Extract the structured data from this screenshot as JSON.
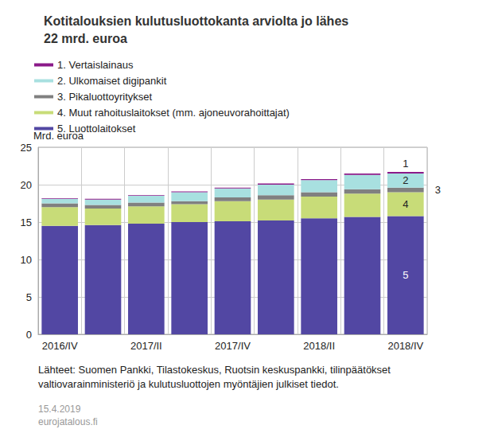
{
  "chart_data": {
    "type": "bar",
    "title": "Kotitalouksien kulutusluottokanta arviolta jo lähes\n22 mrd. euroa",
    "y_label": "Mrd. euroa",
    "categories": [
      "2016/IV",
      null,
      "2017/II",
      null,
      "2017/IV",
      null,
      "2018/II",
      null,
      "2018/IV"
    ],
    "series": [
      {
        "name": "1. Vertaislainaus",
        "color": "#8b1a89",
        "values": [
          0.1,
          0.1,
          0.1,
          0.1,
          0.1,
          0.15,
          0.15,
          0.2,
          0.2
        ]
      },
      {
        "name": "2. Ulkomaiset digipankit",
        "color": "#a8e0e0",
        "values": [
          0.6,
          0.7,
          0.9,
          1.2,
          1.2,
          1.4,
          1.6,
          1.9,
          1.9
        ]
      },
      {
        "name": "3. Pikaluottoyritykset",
        "color": "#808080",
        "values": [
          0.5,
          0.5,
          0.5,
          0.4,
          0.5,
          0.6,
          0.6,
          0.6,
          0.6
        ]
      },
      {
        "name": "4. Muut rahoituslaitokset (mm. ajoneuvorahoittajat)",
        "color": "#c8dc78",
        "values": [
          2.5,
          2.2,
          2.3,
          2.4,
          2.7,
          2.8,
          2.9,
          3.1,
          3.2
        ]
      },
      {
        "name": "5. Luottolaitokset",
        "color": "#5247a3",
        "values": [
          14.5,
          14.6,
          14.8,
          15.0,
          15.1,
          15.2,
          15.5,
          15.7,
          15.8
        ]
      }
    ],
    "annotations": [
      "1",
      "2",
      "3",
      "4",
      "5"
    ],
    "stacked": true,
    "grid": true,
    "legend": "top-left",
    "ylim": [
      0,
      25
    ],
    "yticks": [
      0,
      5,
      10,
      15,
      20,
      25
    ],
    "source": "Lähteet: Suomen Pankki, Tilastokeskus, Ruotsin keskuspankki, tilinpäätökset\nvaltiovarainministeriö ja kulutusluottojen myöntäjien julkiset tiedot.",
    "date": "15.4.2019",
    "site": "eurojatalous.fi"
  }
}
